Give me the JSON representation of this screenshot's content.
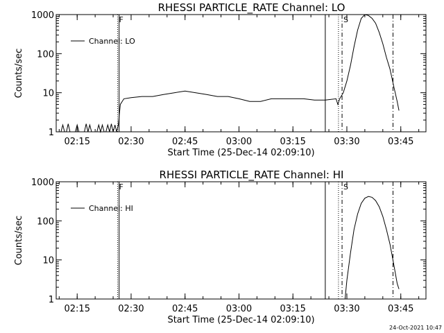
{
  "footer": {
    "timestamp": "24-Oct-2021 10:47"
  },
  "chart_data": [
    {
      "type": "line",
      "title": "RHESSI PARTICLE_RATE Channel: LO",
      "xlabel": "Start Time (25-Dec-14 02:09:10)",
      "ylabel": "Counts/sec",
      "y_scale": "log",
      "ylim": [
        1,
        1000
      ],
      "xlim": [
        "02:09:10",
        "03:52:00"
      ],
      "x_ticks": [
        "02:15",
        "02:30",
        "02:45",
        "03:00",
        "03:15",
        "03:30",
        "03:45"
      ],
      "y_ticks": [
        "1",
        "10",
        "100",
        "1000"
      ],
      "legend": {
        "entries": [
          "Channel: LO"
        ],
        "position": "top-left"
      },
      "series": [
        {
          "name": "Channel: LO",
          "x": [
            "02:09:10",
            "02:10:00",
            "02:10:30",
            "02:11:00",
            "02:11:30",
            "02:12:00",
            "02:12:30",
            "02:13:00",
            "02:13:30",
            "02:14:00",
            "02:14:30",
            "02:15:00",
            "02:15:30",
            "02:16:00",
            "02:16:30",
            "02:17:00",
            "02:17:30",
            "02:18:00",
            "02:18:30",
            "02:19:00",
            "02:19:30",
            "02:20:00",
            "02:20:30",
            "02:21:00",
            "02:21:30",
            "02:22:00",
            "02:22:30",
            "02:23:00",
            "02:23:30",
            "02:24:00",
            "02:24:30",
            "02:25:00",
            "02:25:30",
            "02:26:00",
            "02:26:30",
            "02:27:00",
            "02:28:00",
            "02:30:00",
            "02:33:00",
            "02:36:00",
            "02:39:00",
            "02:42:00",
            "02:45:00",
            "02:48:00",
            "02:51:00",
            "02:54:00",
            "02:57:00",
            "03:00:00",
            "03:03:00",
            "03:06:00",
            "03:09:00",
            "03:12:00",
            "03:15:00",
            "03:18:00",
            "03:21:00",
            "03:24:00",
            "03:27:00",
            "03:27:30",
            "03:28:00",
            "03:29:00",
            "03:30:00",
            "03:31:00",
            "03:32:00",
            "03:33:00",
            "03:34:00",
            "03:35:00",
            "03:36:00",
            "03:37:00",
            "03:38:00",
            "03:39:00",
            "03:40:00",
            "03:41:00",
            "03:42:00",
            "03:43:00",
            "03:44:00",
            "03:44:30"
          ],
          "values": [
            1,
            1,
            1,
            1.5,
            1,
            1,
            1.6,
            1,
            1,
            1,
            1,
            1.5,
            1,
            1,
            1,
            1,
            1.6,
            1,
            1.5,
            1,
            1,
            1,
            1,
            1.5,
            1,
            1.5,
            1,
            1,
            1.5,
            1,
            1.6,
            1,
            1.5,
            1,
            1.6,
            5,
            7,
            7.5,
            8,
            8,
            9,
            10,
            11,
            10,
            9,
            8,
            8,
            7,
            6,
            6,
            7,
            7,
            7,
            7,
            6.5,
            6.5,
            7,
            5,
            7,
            10,
            20,
            50,
            150,
            400,
            800,
            1000,
            950,
            800,
            600,
            350,
            180,
            80,
            40,
            15,
            6,
            3.5
          ]
        }
      ],
      "markers": [
        {
          "x": "02:26:15",
          "style": "dotted",
          "label": "F"
        },
        {
          "x": "02:26:40",
          "style": "solid",
          "label": ""
        },
        {
          "x": "03:24:00",
          "style": "solid",
          "label": ""
        },
        {
          "x": "03:27:40",
          "style": "dotted",
          "label": ""
        },
        {
          "x": "03:28:40",
          "style": "dash-dot",
          "label": "S"
        },
        {
          "x": "03:42:50",
          "style": "dash-dot",
          "label": ""
        }
      ]
    },
    {
      "type": "line",
      "title": "RHESSI PARTICLE_RATE Channel: HI",
      "xlabel": "Start Time (25-Dec-14 02:09:10)",
      "ylabel": "Counts/sec",
      "y_scale": "log",
      "ylim": [
        1,
        1000
      ],
      "xlim": [
        "02:09:10",
        "03:52:00"
      ],
      "x_ticks": [
        "02:15",
        "02:30",
        "02:45",
        "03:00",
        "03:15",
        "03:30",
        "03:45"
      ],
      "y_ticks": [
        "1",
        "10",
        "100",
        "1000"
      ],
      "legend": {
        "entries": [
          "Channel: HI"
        ],
        "position": "top-left"
      },
      "series": [
        {
          "name": "Channel: HI",
          "x": [
            "03:29:30",
            "03:30:00",
            "03:31:00",
            "03:32:00",
            "03:33:00",
            "03:34:00",
            "03:35:00",
            "03:36:00",
            "03:37:00",
            "03:38:00",
            "03:39:00",
            "03:40:00",
            "03:41:00",
            "03:42:00",
            "03:43:00",
            "03:44:00",
            "03:44:30"
          ],
          "values": [
            1,
            3,
            15,
            60,
            150,
            280,
            380,
            420,
            400,
            330,
            230,
            130,
            60,
            25,
            8,
            2.5,
            1.8
          ]
        }
      ],
      "markers": [
        {
          "x": "02:26:15",
          "style": "dotted",
          "label": "F"
        },
        {
          "x": "02:26:40",
          "style": "solid",
          "label": ""
        },
        {
          "x": "03:24:00",
          "style": "solid",
          "label": ""
        },
        {
          "x": "03:27:40",
          "style": "dotted",
          "label": ""
        },
        {
          "x": "03:28:40",
          "style": "dash-dot",
          "label": "S"
        },
        {
          "x": "03:42:50",
          "style": "dash-dot",
          "label": ""
        }
      ]
    }
  ]
}
